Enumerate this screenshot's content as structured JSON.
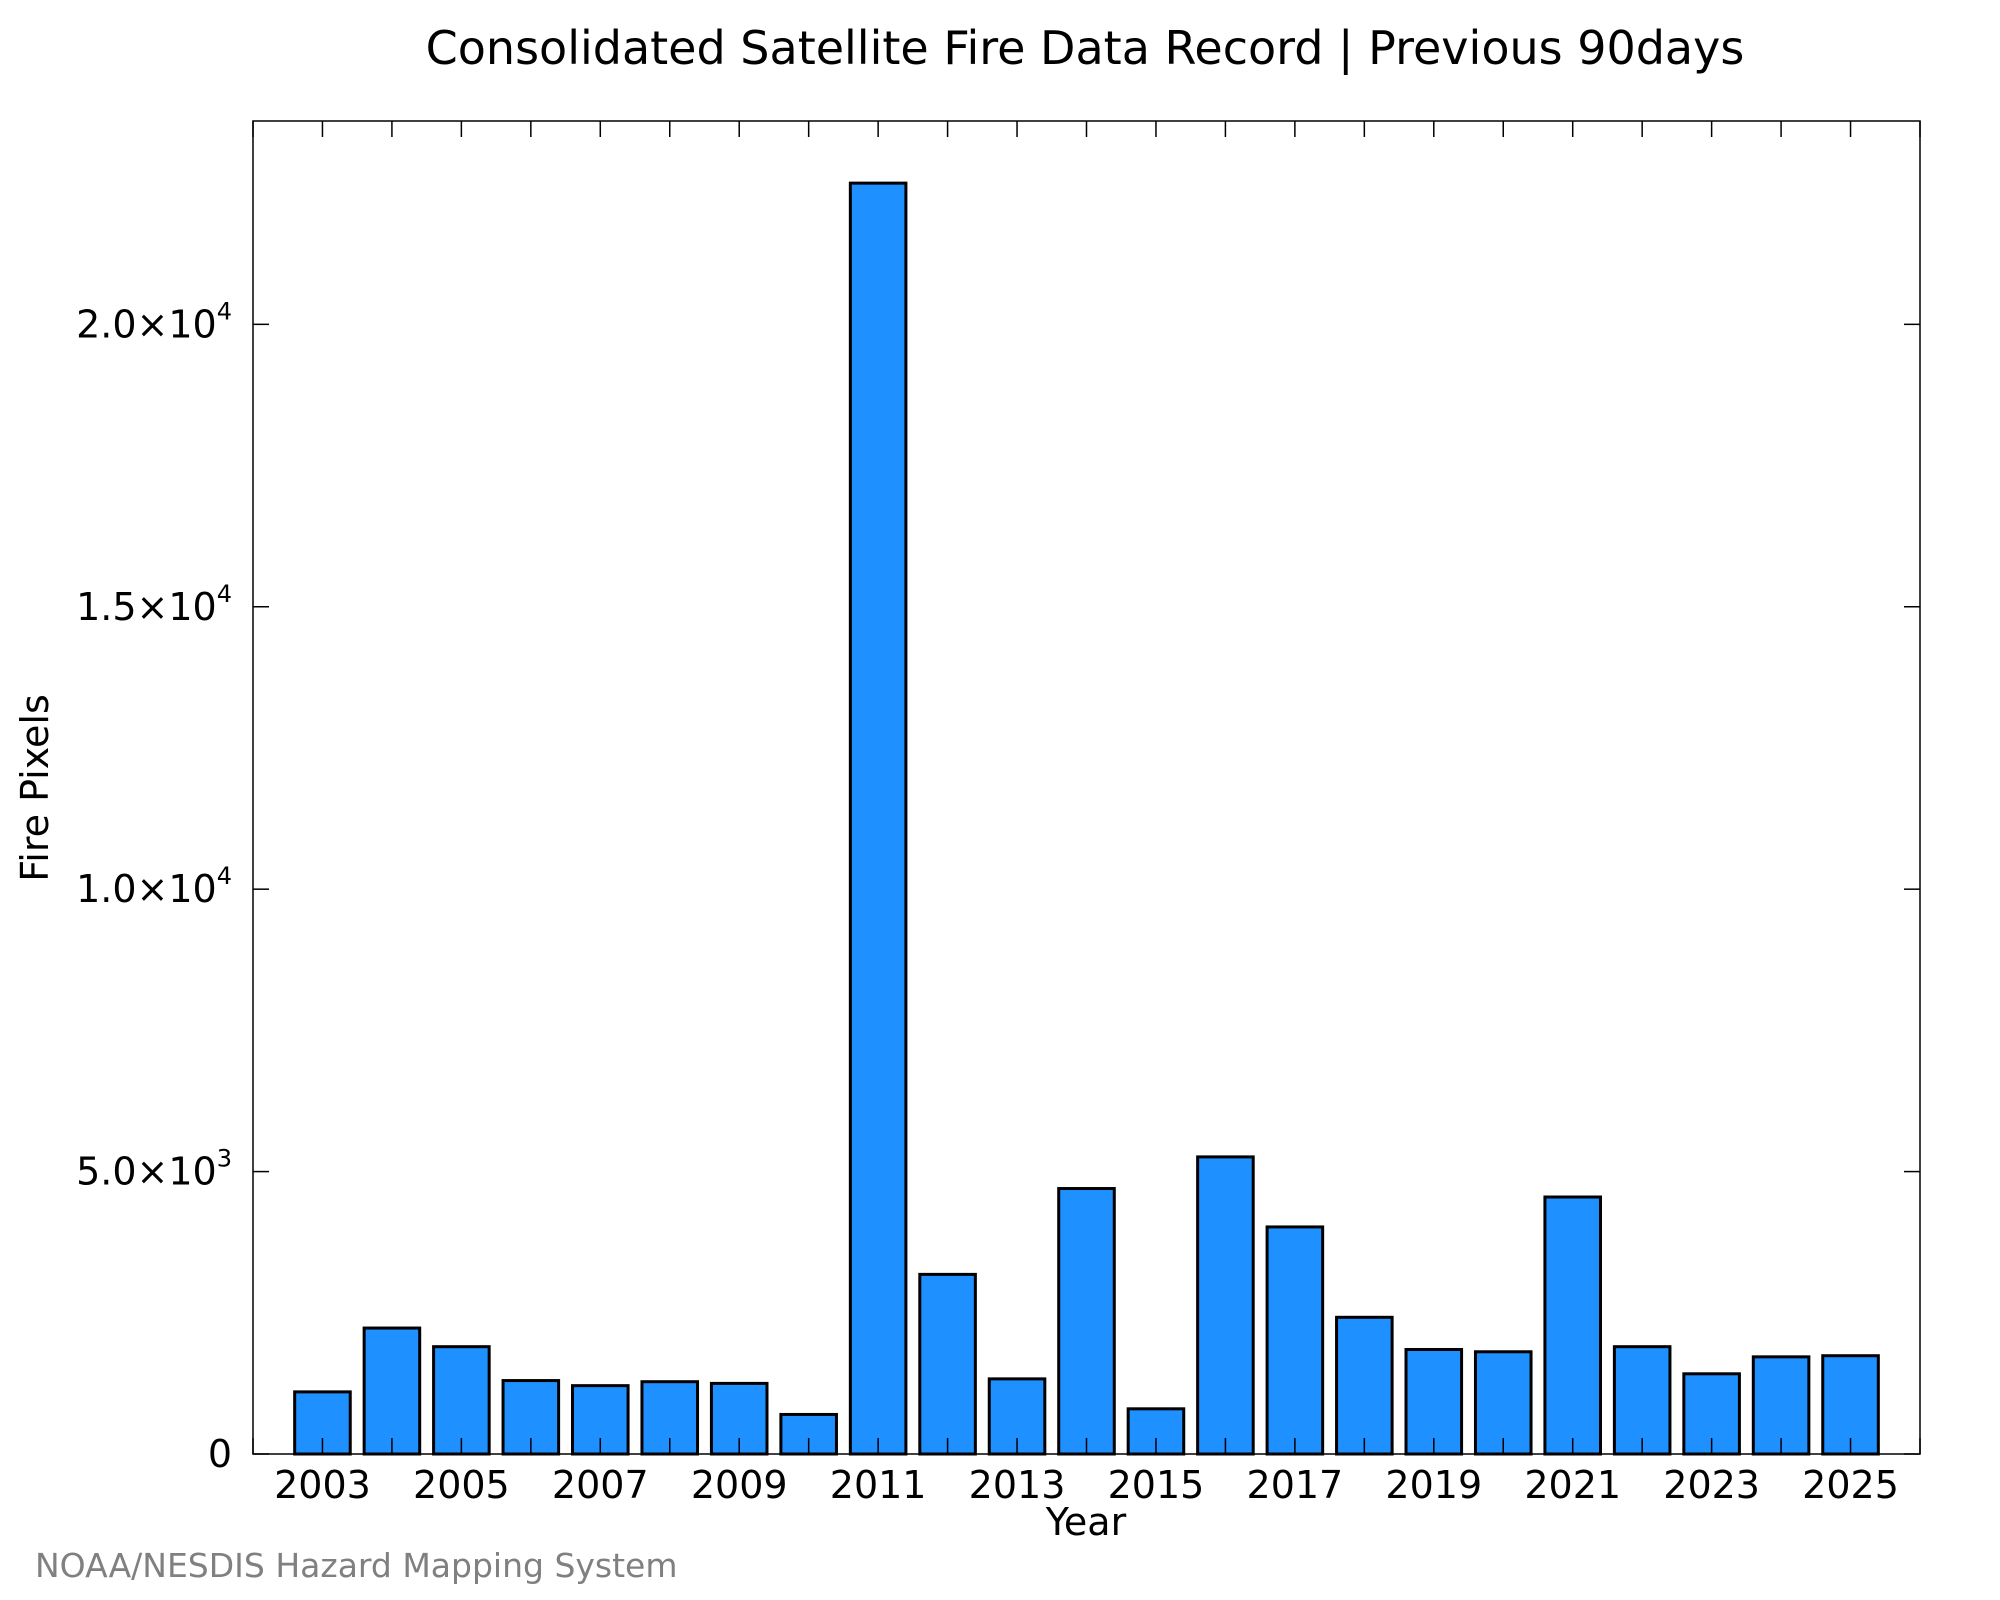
{
  "chart_data": {
    "type": "bar",
    "title": "Consolidated Satellite Fire Data Record | Previous 90days",
    "xlabel": "Year",
    "ylabel": "Fire Pixels",
    "categories": [
      "2003",
      "2004",
      "2005",
      "2006",
      "2007",
      "2008",
      "2009",
      "2010",
      "2011",
      "2012",
      "2013",
      "2014",
      "2015",
      "2016",
      "2017",
      "2018",
      "2019",
      "2020",
      "2021",
      "2022",
      "2023",
      "2024",
      "2025"
    ],
    "values": [
      1100,
      2230,
      1900,
      1300,
      1210,
      1280,
      1250,
      700,
      22500,
      3180,
      1330,
      4700,
      800,
      5260,
      4020,
      2420,
      1850,
      1810,
      4550,
      1900,
      1420,
      1720,
      1740
    ],
    "ylim": [
      0,
      23600
    ],
    "xlim": [
      2002.0,
      2026.0
    ],
    "y_ticks": [
      {
        "value": 0,
        "mantissa": "0",
        "exp": ""
      },
      {
        "value": 5000,
        "mantissa": "5.0×10",
        "exp": "3"
      },
      {
        "value": 10000,
        "mantissa": "1.0×10",
        "exp": "4"
      },
      {
        "value": 15000,
        "mantissa": "1.5×10",
        "exp": "4"
      },
      {
        "value": 20000,
        "mantissa": "2.0×10",
        "exp": "4"
      }
    ],
    "x_ticks": [
      "2003",
      "2005",
      "2007",
      "2009",
      "2011",
      "2013",
      "2015",
      "2017",
      "2019",
      "2021",
      "2023",
      "2025"
    ],
    "bar_color": "#1e90ff",
    "edge_color": "#000000",
    "grid": false,
    "legend": "none"
  },
  "footer": {
    "credit": "NOAA/NESDIS Hazard Mapping System"
  }
}
